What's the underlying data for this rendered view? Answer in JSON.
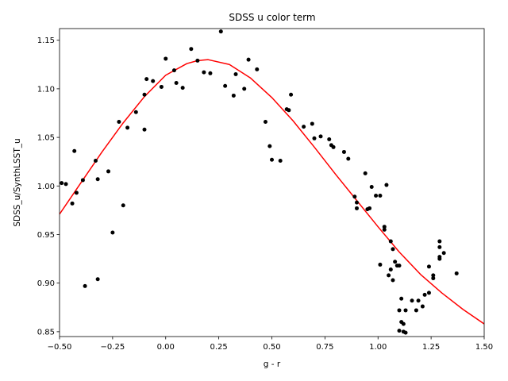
{
  "chart_data": {
    "type": "scatter",
    "title": "SDSS u color term",
    "xlabel": "g - r",
    "ylabel": "SDSS_u/SynthLSST_u",
    "xlim": [
      -0.5,
      1.5
    ],
    "ylim": [
      0.845,
      1.162
    ],
    "xticks": [
      -0.5,
      -0.25,
      0.0,
      0.25,
      0.5,
      0.75,
      1.0,
      1.25,
      1.5
    ],
    "xtick_labels": [
      "−0.50",
      "−0.25",
      "0.00",
      "0.25",
      "0.50",
      "0.75",
      "1.00",
      "1.25",
      "1.50"
    ],
    "yticks": [
      0.85,
      0.9,
      0.95,
      1.0,
      1.05,
      1.1,
      1.15
    ],
    "ytick_labels": [
      "0.85",
      "0.90",
      "0.95",
      "1.00",
      "1.05",
      "1.10",
      "1.15"
    ],
    "grid": false,
    "series": [
      {
        "kind": "points",
        "color": "#000000",
        "x": [
          -0.49,
          -0.47,
          -0.44,
          -0.43,
          -0.42,
          -0.39,
          -0.38,
          -0.33,
          -0.32,
          -0.32,
          -0.27,
          -0.25,
          -0.22,
          -0.2,
          -0.18,
          -0.14,
          -0.1,
          -0.1,
          -0.09,
          -0.06,
          -0.02,
          0.0,
          0.04,
          0.05,
          0.08,
          0.12,
          0.15,
          0.18,
          0.21,
          0.26,
          0.28,
          0.32,
          0.33,
          0.37,
          0.39,
          0.43,
          0.47,
          0.49,
          0.5,
          0.54,
          0.57,
          0.58,
          0.59,
          0.65,
          0.69,
          0.7,
          0.73,
          0.77,
          0.78,
          0.79,
          0.84,
          0.86,
          0.89,
          0.9,
          0.9,
          0.94,
          0.95,
          0.96,
          0.97,
          0.99,
          1.01,
          1.01,
          1.03,
          1.03,
          1.04,
          1.05,
          1.06,
          1.06,
          1.07,
          1.07,
          1.08,
          1.09,
          1.1,
          1.1,
          1.1,
          1.11,
          1.11,
          1.12,
          1.12,
          1.13,
          1.13,
          1.16,
          1.18,
          1.19,
          1.21,
          1.22,
          1.24,
          1.24,
          1.26,
          1.26,
          1.29,
          1.29,
          1.29,
          1.29,
          1.31,
          1.37
        ],
        "y": [
          1.003,
          1.002,
          0.982,
          1.036,
          0.993,
          1.006,
          0.897,
          1.026,
          1.007,
          0.904,
          1.015,
          0.952,
          1.066,
          0.98,
          1.06,
          1.076,
          1.094,
          1.058,
          1.11,
          1.108,
          1.102,
          1.131,
          1.119,
          1.106,
          1.101,
          1.141,
          1.129,
          1.117,
          1.116,
          1.159,
          1.103,
          1.093,
          1.115,
          1.1,
          1.13,
          1.12,
          1.066,
          1.041,
          1.027,
          1.026,
          1.079,
          1.078,
          1.094,
          1.061,
          1.064,
          1.049,
          1.051,
          1.048,
          1.042,
          1.04,
          1.035,
          1.028,
          0.989,
          0.983,
          0.977,
          1.013,
          0.976,
          0.977,
          0.999,
          0.99,
          0.99,
          0.919,
          0.958,
          0.955,
          1.001,
          0.908,
          0.943,
          0.914,
          0.935,
          0.903,
          0.922,
          0.918,
          0.918,
          0.872,
          0.851,
          0.884,
          0.86,
          0.858,
          0.85,
          0.849,
          0.872,
          0.882,
          0.872,
          0.882,
          0.876,
          0.888,
          0.917,
          0.89,
          0.908,
          0.905,
          0.943,
          0.937,
          0.927,
          0.925,
          0.931,
          0.91
        ]
      },
      {
        "kind": "fit-curve",
        "color": "#ff0000",
        "x": [
          -0.5,
          -0.4,
          -0.3,
          -0.2,
          -0.1,
          0.0,
          0.1,
          0.15,
          0.2,
          0.3,
          0.4,
          0.5,
          0.6,
          0.7,
          0.8,
          0.9,
          1.0,
          1.1,
          1.2,
          1.3,
          1.4,
          1.5
        ],
        "y": [
          0.971,
          1.003,
          1.035,
          1.065,
          1.092,
          1.114,
          1.126,
          1.129,
          1.13,
          1.125,
          1.111,
          1.091,
          1.067,
          1.04,
          1.012,
          0.985,
          0.958,
          0.932,
          0.909,
          0.89,
          0.873,
          0.858
        ]
      }
    ]
  }
}
